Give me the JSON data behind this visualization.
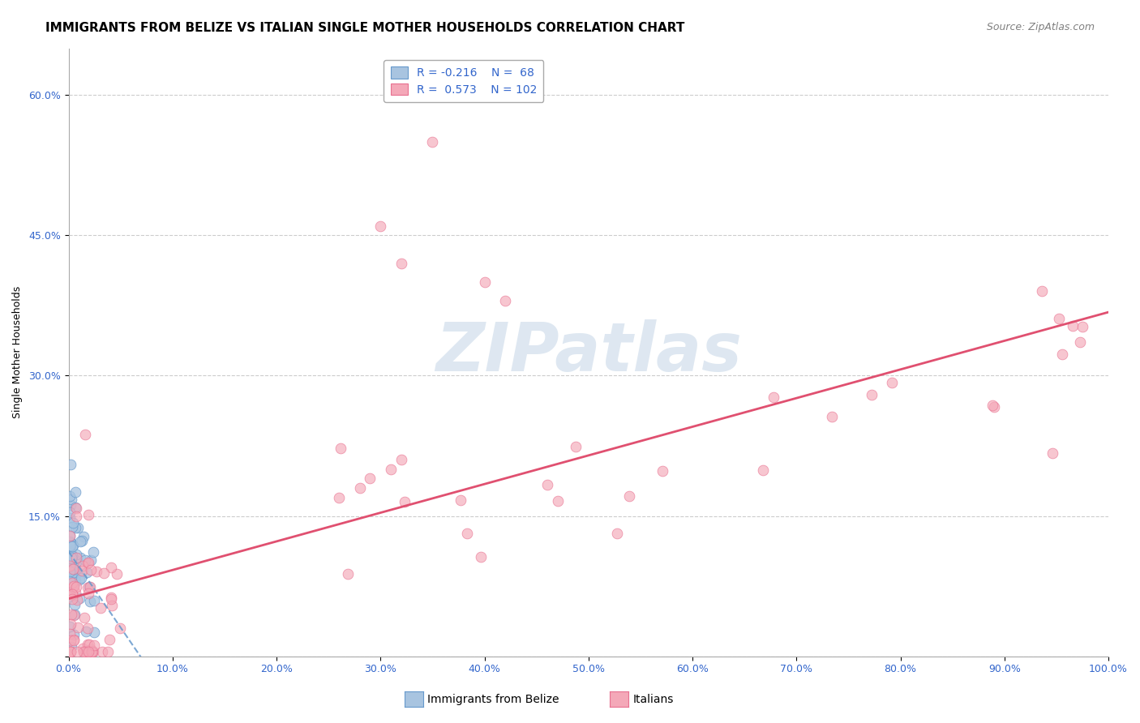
{
  "title": "IMMIGRANTS FROM BELIZE VS ITALIAN SINGLE MOTHER HOUSEHOLDS CORRELATION CHART",
  "source": "Source: ZipAtlas.com",
  "ylabel": "Single Mother Households",
  "xlim": [
    0,
    1.0
  ],
  "ylim": [
    0,
    0.65
  ],
  "xticks": [
    0.0,
    0.1,
    0.2,
    0.3,
    0.4,
    0.5,
    0.6,
    0.7,
    0.8,
    0.9,
    1.0
  ],
  "xticklabels": [
    "0.0%",
    "10.0%",
    "20.0%",
    "30.0%",
    "40.0%",
    "50.0%",
    "60.0%",
    "70.0%",
    "80.0%",
    "90.0%",
    "100.0%"
  ],
  "ytick_positions": [
    0.0,
    0.15,
    0.3,
    0.45,
    0.6
  ],
  "ytick_labels": [
    "",
    "15.0%",
    "30.0%",
    "45.0%",
    "60.0%"
  ],
  "grid_color": "#cccccc",
  "background_color": "#ffffff",
  "blue_color": "#a8c4e0",
  "pink_color": "#f4a8b8",
  "blue_edge": "#6699cc",
  "pink_edge": "#e87090",
  "trend_blue": "#6699cc",
  "trend_pink": "#e05070",
  "R_blue": -0.216,
  "N_blue": 68,
  "R_pink": 0.573,
  "N_pink": 102,
  "legend_R_color": "#3366cc",
  "watermark": "ZIPatlas",
  "watermark_color": "#c8d8e8",
  "title_fontsize": 11,
  "source_fontsize": 9,
  "axis_label_fontsize": 9,
  "tick_label_fontsize": 9,
  "legend_fontsize": 10
}
